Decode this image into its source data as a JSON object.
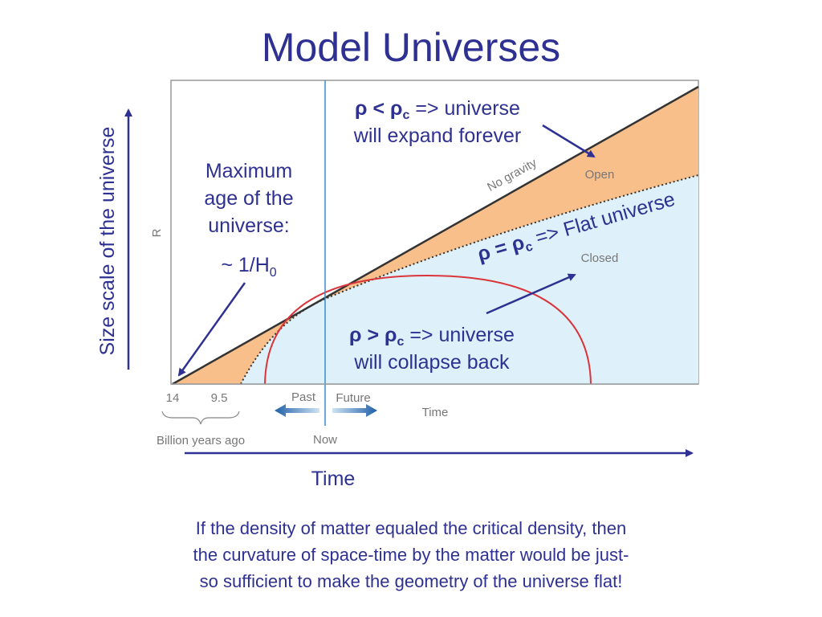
{
  "title": "Model Universes",
  "y_axis_label": "Size scale of the universe",
  "x_axis_label": "Time",
  "diagram": {
    "r_label": "R",
    "open_label": "Open",
    "closed_label": "Closed",
    "no_gravity_label": "No gravity",
    "tick_14": "14",
    "tick_9_5": "9.5",
    "past": "Past",
    "future": "Future",
    "time": "Time",
    "billion_years_ago": "Billion years ago",
    "now": "Now"
  },
  "annotations": {
    "expand": {
      "rho": "ρ < ρ",
      "sub": "c",
      "rest": " => universe",
      "line2": "will expand forever"
    },
    "flat": {
      "rho": "ρ = ρ",
      "sub": "c",
      "rest": " => Flat universe"
    },
    "collapse": {
      "rho": "ρ > ρ",
      "sub": "c",
      "rest": " => universe",
      "line2": "will collapse back"
    },
    "max_age": {
      "line1": "Maximum",
      "line2": "age of the",
      "line3": "universe:",
      "formula": "~ 1/H",
      "sub": "0"
    }
  },
  "caption": [
    "If the density of matter equaled the critical density, then",
    "the curvature of space-time by the matter would be just-",
    "so sufficient to make the geometry of the universe flat!"
  ]
}
